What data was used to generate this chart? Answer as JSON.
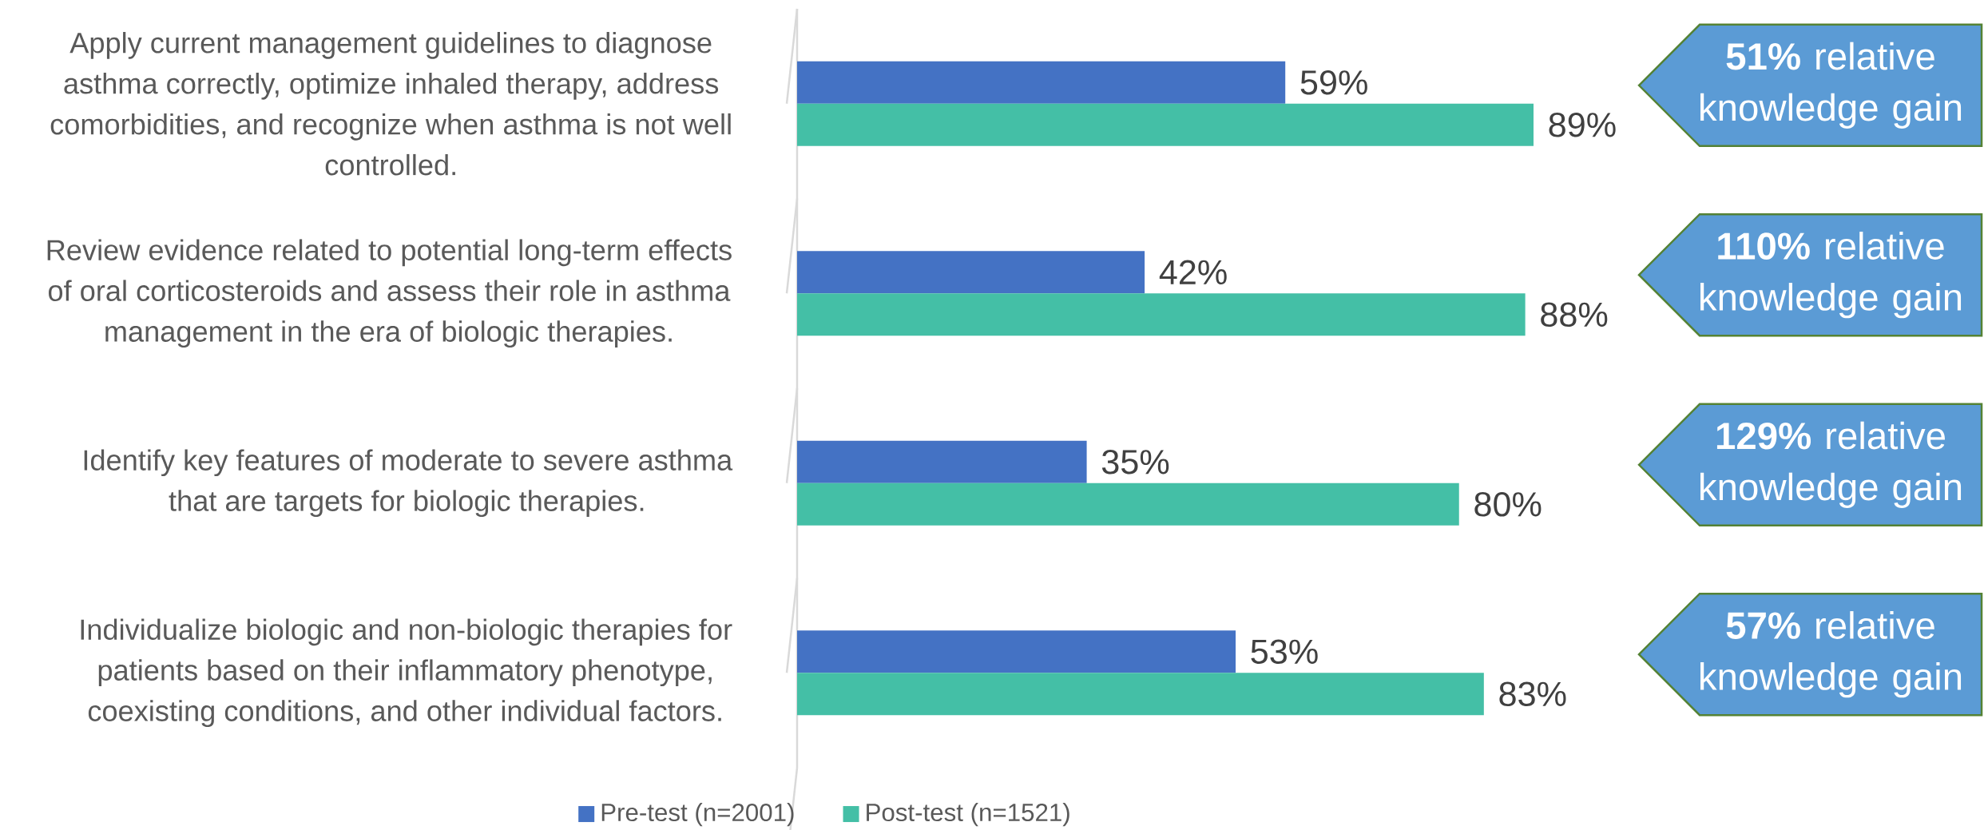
{
  "chart_data": {
    "type": "bar",
    "orientation": "horizontal",
    "categories": [
      "Apply current management guidelines to diagnose asthma correctly, optimize inhaled therapy, address comorbidities, and recognize when asthma is not well controlled.",
      "Review evidence related to potential long-term effects of oral corticosteroids and assess their role in asthma management in the era of biologic therapies.",
      "Identify key features of moderate to severe asthma that are targets for biologic therapies.",
      "Individualize biologic and non-biologic therapies for patients based on their inflammatory phenotype, coexisting conditions, and other individual factors."
    ],
    "series": [
      {
        "name": "Pre-test (n=2001)",
        "color": "#4472c4",
        "values": [
          59,
          42,
          35,
          53
        ],
        "value_labels": [
          "59%",
          "42%",
          "35%",
          "53%"
        ]
      },
      {
        "name": "Post-test (n=1521)",
        "color": "#44bfa6",
        "values": [
          89,
          88,
          80,
          83
        ],
        "value_labels": [
          "89%",
          "88%",
          "80%",
          "83%"
        ]
      }
    ],
    "tick_labels": "y",
    "legend": "bottom",
    "annotations": [
      "**51%** relative knowledge gain",
      "**110%** relative knowledge gain",
      "**129%** relative knowledge gain",
      "**57%** relative knowledge gain"
    ]
  }
}
